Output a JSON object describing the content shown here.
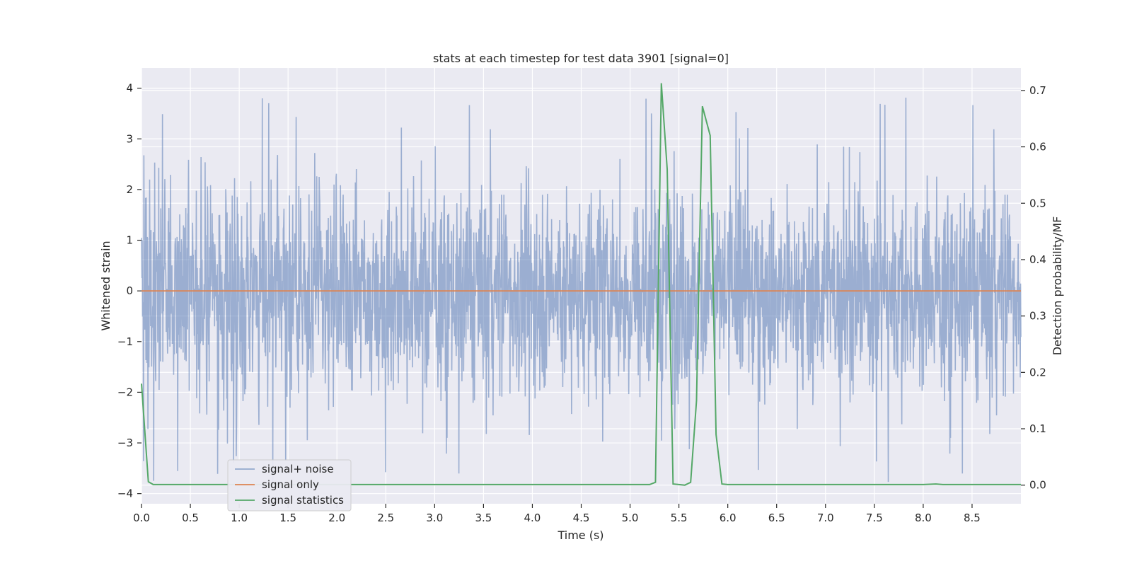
{
  "chart_data": {
    "type": "line",
    "title": "stats at each timestep for test data 3901 [signal=0]",
    "xlabel": "Time (s)",
    "ylabel": "Whitened strain",
    "y2label": "Detection probability/MF",
    "xlim": [
      0.0,
      9.0
    ],
    "ylim": [
      -4.2,
      4.4
    ],
    "y2lim": [
      -0.033,
      0.74
    ],
    "xticks": [
      "0.0",
      "0.5",
      "1.0",
      "1.5",
      "2.0",
      "2.5",
      "3.0",
      "3.5",
      "4.0",
      "4.5",
      "5.0",
      "5.5",
      "6.0",
      "6.5",
      "7.0",
      "7.5",
      "8.0",
      "8.5"
    ],
    "yticks": [
      "4",
      "3",
      "2",
      "1",
      "0",
      "−1",
      "−2",
      "−3",
      "−4"
    ],
    "y2ticks": [
      "0.7",
      "0.6",
      "0.5",
      "0.4",
      "0.3",
      "0.2",
      "0.1",
      "0.0"
    ],
    "grid": true,
    "legend_position": "lower-left",
    "colors": {
      "background": "#eaeaf2",
      "grid": "#ffffff",
      "noise": "#4c72b0",
      "signal_only": "#dd8452",
      "statistics": "#55a868"
    },
    "series": [
      {
        "name": "signal+ noise",
        "axis": "left",
        "description_noise_envelope": {
          "typical_abs": 1.7,
          "spike_peaks_pos": [
            4.0,
            3.6,
            3.4,
            3.3,
            3.2,
            3.1,
            3.0,
            2.9,
            2.8
          ],
          "spike_peaks_neg": [
            -3.8,
            -3.6,
            -3.4,
            -3.3,
            -3.2,
            -3.1
          ]
        }
      },
      {
        "name": "signal only",
        "axis": "left",
        "x": [
          0.0,
          9.0
        ],
        "values": [
          0,
          0
        ]
      },
      {
        "name": "signal statistics",
        "axis": "right",
        "x": [
          0.0,
          0.07,
          0.12,
          0.2,
          5.0,
          5.2,
          5.26,
          5.32,
          5.38,
          5.44,
          5.5,
          5.56,
          5.62,
          5.68,
          5.74,
          5.82,
          5.88,
          5.94,
          6.0,
          8.0,
          8.13,
          8.2,
          9.0
        ],
        "values": [
          0.18,
          0.006,
          0.001,
          0.001,
          0.001,
          0.001,
          0.005,
          0.713,
          0.56,
          0.002,
          0.001,
          0.0,
          0.005,
          0.15,
          0.672,
          0.62,
          0.09,
          0.002,
          0.001,
          0.001,
          0.002,
          0.001,
          0.001
        ]
      }
    ]
  }
}
